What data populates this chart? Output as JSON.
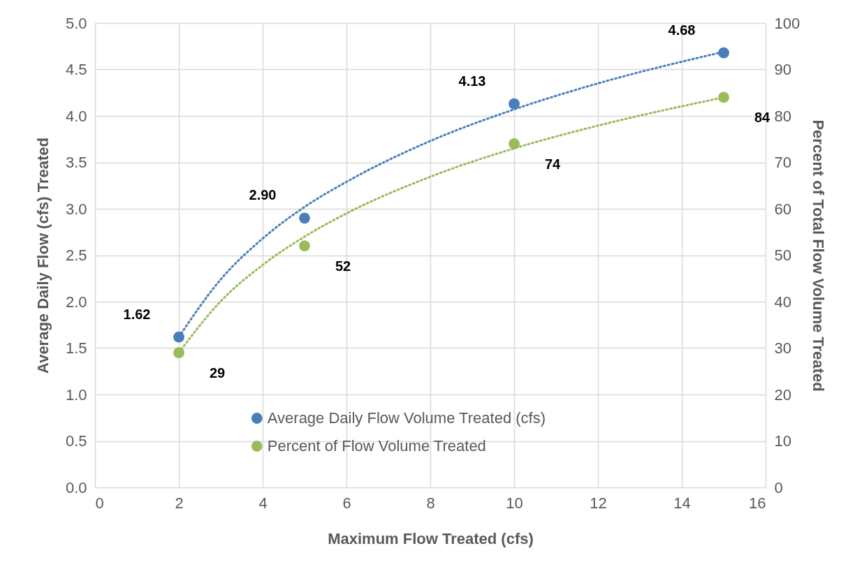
{
  "chart_data": {
    "type": "scatter",
    "xlabel": "Maximum Flow Treated (cfs)",
    "ylabel": "Average Daily Flow (cfs) Treated",
    "y2label": "Percent of Total Flow Volume Treated",
    "x": [
      2,
      5,
      10,
      15
    ],
    "xlim": [
      0,
      16
    ],
    "xticks": [
      0,
      2,
      4,
      6,
      8,
      10,
      12,
      14,
      16
    ],
    "ylim": [
      0,
      5
    ],
    "yticks": [
      {
        "value": 0,
        "label": "0.0"
      },
      {
        "value": 0.5,
        "label": "0.5"
      },
      {
        "value": 1,
        "label": "1.0"
      },
      {
        "value": 1.5,
        "label": "1.5"
      },
      {
        "value": 2,
        "label": "2.0"
      },
      {
        "value": 2.5,
        "label": "2.5"
      },
      {
        "value": 3,
        "label": "3.0"
      },
      {
        "value": 3.5,
        "label": "3.5"
      },
      {
        "value": 4,
        "label": "4.0"
      },
      {
        "value": 4.5,
        "label": "4.5"
      },
      {
        "value": 5,
        "label": "5.0"
      }
    ],
    "y2lim": [
      0,
      100
    ],
    "y2ticks": [
      0,
      10,
      20,
      30,
      40,
      50,
      60,
      70,
      80,
      90,
      100
    ],
    "grid": true,
    "legend": "bottom",
    "marker": "circle",
    "series": [
      {
        "type": "line",
        "marker": "none",
        "axis": "y",
        "color": "#4a7ebb",
        "line_style": "dotted",
        "x": [
          2,
          3,
          4,
          5,
          6,
          8,
          10,
          12,
          15
        ],
        "values": [
          1.62,
          2.24,
          2.68,
          3.02,
          3.29,
          3.73,
          4.07,
          4.35,
          4.69
        ]
      },
      {
        "type": "line",
        "marker": "none",
        "axis": "y2",
        "color": "#9bbb59",
        "line_style": "dotted",
        "x": [
          2,
          3,
          4,
          5,
          6,
          8,
          10,
          12,
          15
        ],
        "values": [
          29.0,
          40.1,
          47.9,
          54.0,
          59.0,
          66.9,
          73.0,
          77.9,
          84.0
        ]
      },
      {
        "name": "Average Daily Flow Volume Treated (cfs)",
        "axis": "y",
        "color": "#4a7ebb",
        "values": [
          1.62,
          2.9,
          4.13,
          4.68
        ],
        "value_labels": [
          "1.62",
          "2.90",
          "4.13",
          "4.68"
        ]
      },
      {
        "name": "Percent of Flow Volume Treated",
        "axis": "y2",
        "color": "#9bbb59",
        "values": [
          29,
          52,
          74,
          84
        ],
        "value_labels": [
          "29",
          "52",
          "74",
          "84"
        ]
      }
    ]
  }
}
